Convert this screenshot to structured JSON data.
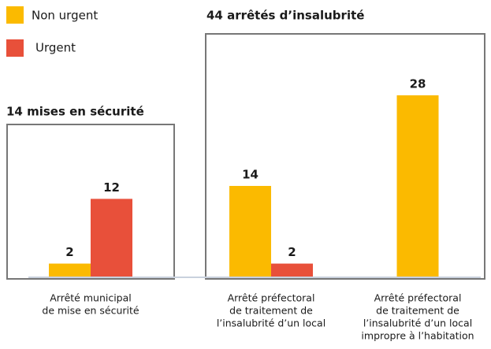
{
  "chart_data": {
    "type": "bar",
    "categories": [
      [
        "Arrêté municipal",
        "de mise en sécurité"
      ],
      [
        "Arrêté préfectoral",
        "de traitement de",
        "l’insalubrité d’un local"
      ],
      [
        "Arrêté préfectoral",
        "de traitement de",
        "l’insalubrité d’un local",
        "impropre à l’habitation"
      ]
    ],
    "series": [
      {
        "name": "Non urgent",
        "color": "#FBBA00",
        "values": [
          2,
          14,
          28
        ]
      },
      {
        "name": "Urgent",
        "color": "#E8503A",
        "values": [
          12,
          2,
          null
        ]
      }
    ],
    "panels": [
      {
        "title": "14 mises en sécurité"
      },
      {
        "title": "44 arrêtés d’insalubrité"
      }
    ],
    "ylim": [
      0,
      28
    ]
  }
}
